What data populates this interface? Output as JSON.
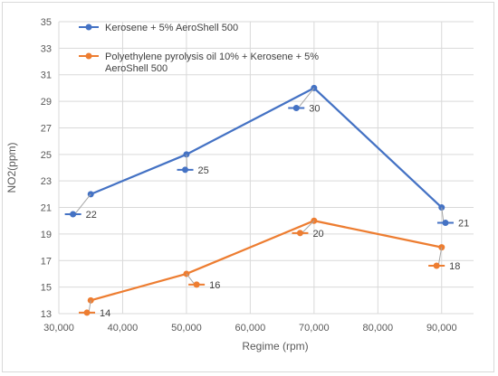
{
  "chart_data": {
    "type": "line",
    "title": "",
    "xlabel": "Regime (rpm)",
    "ylabel": "NO2(ppm)",
    "xlim": [
      30000,
      95000
    ],
    "ylim": [
      13,
      35
    ],
    "x_ticks": [
      "30,000",
      "40,000",
      "50,000",
      "60,000",
      "70,000",
      "80,000",
      "90,000"
    ],
    "x_tick_values": [
      30000,
      40000,
      50000,
      60000,
      70000,
      80000,
      90000
    ],
    "y_ticks": [
      "13",
      "15",
      "17",
      "19",
      "21",
      "23",
      "25",
      "27",
      "29",
      "31",
      "33",
      "35"
    ],
    "y_tick_values": [
      13,
      15,
      17,
      19,
      21,
      23,
      25,
      27,
      29,
      31,
      33,
      35
    ],
    "grid": "vertical and horizontal",
    "legend_position": "top-left",
    "series": [
      {
        "name_lines": [
          "Kerosene + 5% AeroShell 500"
        ],
        "color": "#4472C4",
        "x": [
          35000,
          50000,
          70000,
          90000
        ],
        "y": [
          22,
          25,
          30,
          21
        ],
        "labels": [
          "22",
          "25",
          "30",
          "21"
        ]
      },
      {
        "name_lines": [
          "Polyethylene pyrolysis oil 10% + Kerosene + 5%",
          "AeroShell 500"
        ],
        "color": "#ED7D31",
        "x": [
          35000,
          50000,
          70000,
          90000
        ],
        "y": [
          14,
          16,
          20,
          18
        ],
        "labels": [
          "14",
          "16",
          "20",
          "18"
        ]
      }
    ]
  }
}
